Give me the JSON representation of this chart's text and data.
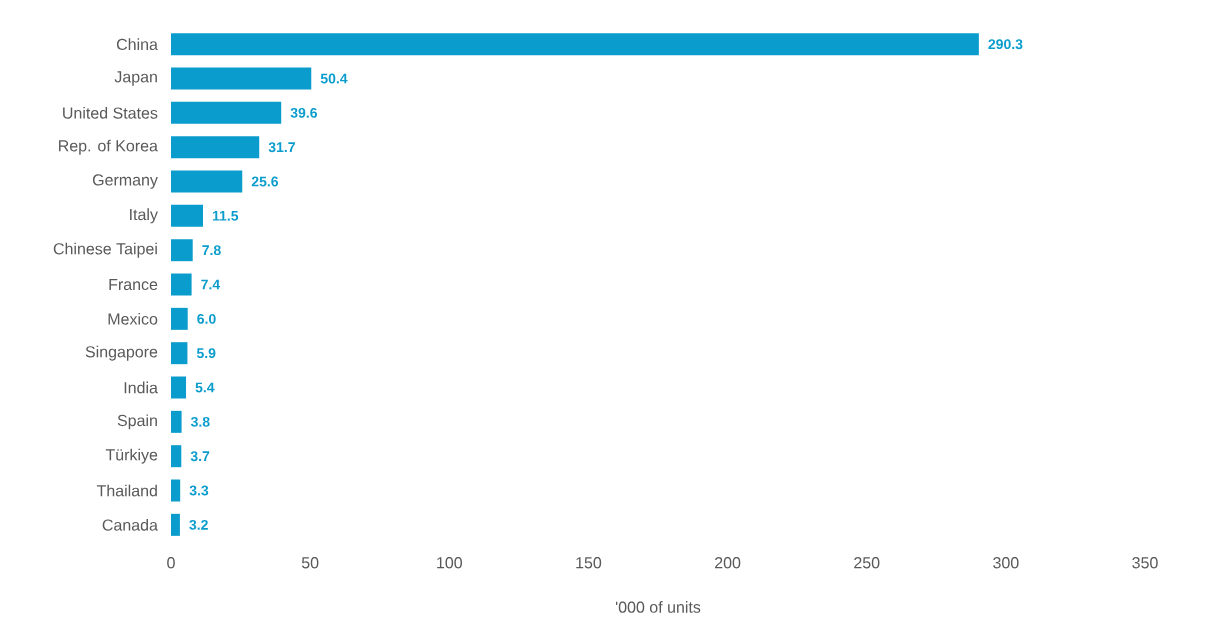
{
  "chart_data": {
    "type": "bar",
    "orientation": "horizontal",
    "xlabel": "'000 of units",
    "categories": [
      "China",
      "Japan",
      "United States",
      "Rep. of Korea",
      "Germany",
      "Italy",
      "Chinese Taipei",
      "France",
      "Mexico",
      "Singapore",
      "India",
      "Spain",
      "Türkiye",
      "Thailand",
      "Canada"
    ],
    "values": [
      290.3,
      50.4,
      39.6,
      31.7,
      25.6,
      11.5,
      7.8,
      7.4,
      6.0,
      5.9,
      5.4,
      3.8,
      3.7,
      3.3,
      3.2
    ],
    "value_labels": [
      "290.3",
      "50.4",
      "39.6",
      "31.7",
      "25.6",
      "11.5",
      "7.8",
      "7.4",
      "6.0",
      "5.9",
      "5.4",
      "3.8",
      "3.7",
      "3.3",
      "3.2"
    ],
    "color": "#0a9ccc",
    "xlim": [
      0,
      350
    ],
    "xticks": [
      0,
      50,
      100,
      150,
      200,
      250,
      300,
      350
    ]
  }
}
